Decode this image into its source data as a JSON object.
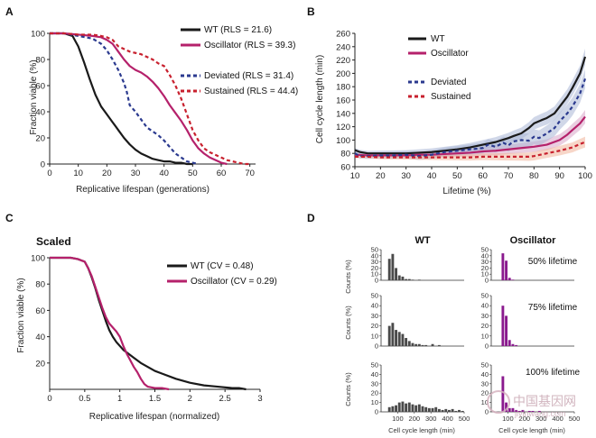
{
  "colors": {
    "wt": "#1a1a1a",
    "osc": "#b5216b",
    "dev": "#2b3a8f",
    "sus": "#c8202e",
    "wt_bar": "#4a4a4a",
    "osc_bar": "#8a1a8e",
    "shade_wt": "#a9b6d6",
    "shade_osc": "#d9a6c9",
    "shade_sus": "#f0b49a"
  },
  "panels": {
    "a": "A",
    "b": "B",
    "c": "C",
    "d": "D"
  },
  "chart_data": [
    {
      "id": "A",
      "type": "line",
      "xlabel": "Replicative lifespan (generations)",
      "ylabel": "Fraction viable (%)",
      "xlim": [
        0,
        72
      ],
      "ylim": [
        0,
        100
      ],
      "xticks": [
        "0",
        "10",
        "20",
        "30",
        "40",
        "50",
        "60",
        "70"
      ],
      "yticks": [
        "0",
        "20",
        "40",
        "60",
        "80",
        "100"
      ],
      "series": [
        {
          "name": "WT (RLS = 21.6)",
          "style": "solid",
          "x": [
            0,
            5,
            8,
            10,
            12,
            14,
            16,
            18,
            20,
            22,
            24,
            26,
            28,
            30,
            32,
            34,
            36,
            38,
            40,
            42,
            44,
            46,
            48,
            50
          ],
          "y": [
            100,
            100,
            98,
            90,
            78,
            65,
            53,
            44,
            38,
            32,
            26,
            20,
            15,
            11,
            8,
            6,
            4,
            3,
            2,
            2,
            1,
            1,
            0,
            0
          ]
        },
        {
          "name": "Oscillator (RLS = 39.3)",
          "style": "solid",
          "x": [
            0,
            5,
            10,
            15,
            18,
            20,
            22,
            24,
            26,
            28,
            30,
            32,
            34,
            36,
            38,
            40,
            42,
            44,
            46,
            48,
            50,
            52,
            54,
            56,
            58,
            60,
            62
          ],
          "y": [
            100,
            100,
            99,
            98,
            97,
            95,
            92,
            86,
            80,
            75,
            72,
            70,
            67,
            63,
            58,
            52,
            45,
            39,
            33,
            26,
            18,
            12,
            8,
            5,
            3,
            1,
            0
          ]
        },
        {
          "name": "Deviated (RLS = 31.4)",
          "style": "dashed",
          "x": [
            0,
            5,
            10,
            15,
            18,
            20,
            22,
            24,
            26,
            27,
            28,
            30,
            32,
            34,
            36,
            38,
            40,
            42,
            44,
            46,
            48,
            50,
            52
          ],
          "y": [
            100,
            100,
            98,
            96,
            92,
            87,
            80,
            72,
            62,
            55,
            45,
            40,
            34,
            28,
            25,
            22,
            18,
            13,
            8,
            5,
            2,
            1,
            0
          ]
        },
        {
          "name": "Sustained (RLS = 44.4)",
          "style": "dashed",
          "x": [
            0,
            5,
            10,
            15,
            18,
            20,
            22,
            24,
            26,
            28,
            30,
            32,
            34,
            36,
            38,
            40,
            42,
            44,
            46,
            48,
            50,
            52,
            54,
            56,
            58,
            60,
            62,
            64,
            66,
            68,
            70
          ],
          "y": [
            100,
            100,
            99,
            99,
            98,
            97,
            95,
            90,
            88,
            86,
            85,
            84,
            82,
            80,
            77,
            75,
            68,
            60,
            50,
            38,
            26,
            18,
            12,
            9,
            7,
            5,
            3,
            2,
            1,
            0,
            0
          ]
        }
      ]
    },
    {
      "id": "B",
      "type": "line",
      "xlabel": "Lifetime (%)",
      "ylabel": "Cell cycle length (min)",
      "xlim": [
        10,
        100
      ],
      "ylim": [
        60,
        260
      ],
      "xticks": [
        "10",
        "20",
        "30",
        "40",
        "50",
        "60",
        "70",
        "80",
        "90",
        "100"
      ],
      "yticks": [
        "60",
        "80",
        "100",
        "120",
        "140",
        "160",
        "180",
        "200",
        "220",
        "240",
        "260"
      ],
      "series": [
        {
          "name": "WT",
          "style": "solid",
          "shade": 6,
          "x": [
            10,
            12,
            15,
            20,
            25,
            30,
            35,
            40,
            45,
            50,
            55,
            60,
            65,
            70,
            72,
            75,
            78,
            80,
            83,
            85,
            88,
            90,
            93,
            95,
            98,
            100
          ],
          "y": [
            85,
            82,
            80,
            80,
            80,
            80,
            81,
            82,
            84,
            86,
            89,
            93,
            97,
            103,
            106,
            110,
            118,
            125,
            130,
            133,
            140,
            150,
            165,
            178,
            200,
            225
          ]
        },
        {
          "name": "Oscillator",
          "style": "solid",
          "shade": 5,
          "x": [
            10,
            15,
            20,
            25,
            30,
            35,
            40,
            45,
            50,
            55,
            60,
            65,
            70,
            75,
            80,
            85,
            90,
            93,
            95,
            98,
            100
          ],
          "y": [
            78,
            77,
            77,
            77,
            77,
            78,
            78,
            79,
            80,
            81,
            83,
            84,
            86,
            88,
            90,
            93,
            100,
            108,
            115,
            125,
            135
          ]
        },
        {
          "name": "Deviated",
          "style": "dashed",
          "shade": 7,
          "x": [
            10,
            12,
            15,
            20,
            25,
            30,
            35,
            40,
            45,
            50,
            55,
            60,
            62,
            65,
            68,
            70,
            72,
            75,
            78,
            80,
            82,
            85,
            88,
            90,
            93,
            95,
            98,
            100
          ],
          "y": [
            80,
            76,
            76,
            77,
            77,
            78,
            76,
            78,
            82,
            84,
            86,
            88,
            93,
            90,
            96,
            92,
            98,
            100,
            99,
            105,
            103,
            110,
            118,
            128,
            140,
            150,
            170,
            192
          ]
        },
        {
          "name": "Sustained",
          "style": "dashed",
          "shade": 4,
          "x": [
            10,
            15,
            20,
            25,
            30,
            35,
            40,
            45,
            50,
            55,
            60,
            65,
            70,
            75,
            78,
            80,
            85,
            90,
            95,
            98,
            100
          ],
          "y": [
            75,
            75,
            74,
            74,
            74,
            74,
            74,
            74,
            74,
            74,
            75,
            75,
            75,
            75,
            75,
            76,
            80,
            84,
            89,
            94,
            97
          ]
        }
      ]
    },
    {
      "id": "C",
      "type": "line",
      "title": "Scaled",
      "xlabel": "Replicative lifespan (normalized)",
      "ylabel": "Fraction viable (%)",
      "xlim": [
        0,
        3
      ],
      "ylim": [
        0,
        100
      ],
      "xticks": [
        "0",
        "0.5",
        "1",
        "1.5",
        "2",
        "2.5",
        "3"
      ],
      "yticks": [
        "20",
        "40",
        "60",
        "80",
        "100"
      ],
      "series": [
        {
          "name": "WT (CV = 0.48)",
          "style": "solid",
          "x": [
            0,
            0.3,
            0.4,
            0.5,
            0.55,
            0.6,
            0.65,
            0.7,
            0.75,
            0.8,
            0.85,
            0.9,
            0.95,
            1.0,
            1.05,
            1.1,
            1.2,
            1.3,
            1.4,
            1.5,
            1.6,
            1.8,
            2.0,
            2.2,
            2.4,
            2.6,
            2.7,
            2.8
          ],
          "y": [
            100,
            100,
            99,
            97,
            92,
            85,
            77,
            68,
            60,
            52,
            45,
            40,
            36,
            33,
            30,
            28,
            24,
            20,
            17,
            14,
            12,
            8,
            5,
            3,
            2,
            1,
            1,
            0
          ]
        },
        {
          "name": "Oscillator (CV = 0.29)",
          "style": "solid",
          "x": [
            0,
            0.3,
            0.4,
            0.5,
            0.55,
            0.6,
            0.65,
            0.7,
            0.75,
            0.8,
            0.85,
            0.9,
            0.95,
            1.0,
            1.05,
            1.1,
            1.15,
            1.2,
            1.25,
            1.3,
            1.35,
            1.4,
            1.5,
            1.6,
            1.7
          ],
          "y": [
            100,
            100,
            99,
            97,
            92,
            86,
            78,
            70,
            62,
            55,
            50,
            47,
            44,
            40,
            33,
            27,
            22,
            17,
            13,
            8,
            4,
            2,
            1,
            1,
            0
          ]
        }
      ]
    },
    {
      "id": "D",
      "type": "bar",
      "xlabel": "Cell cycle length (min)",
      "ylabel": "Counts (%)",
      "xlim": [
        0,
        500
      ],
      "ylim": [
        0,
        50
      ],
      "xticks": [
        "100",
        "200",
        "300",
        "400",
        "500"
      ],
      "yticks": [
        "0",
        "10",
        "20",
        "30",
        "40",
        "50"
      ],
      "columns": [
        "WT",
        "Oscillator"
      ],
      "rows": [
        "50% lifetime",
        "75% lifetime",
        "100% lifetime"
      ],
      "bin_edges_start": [
        40,
        60,
        80,
        100,
        120,
        140,
        160,
        180,
        200,
        220,
        240,
        260,
        280,
        300,
        320,
        340,
        360,
        380,
        400,
        420,
        440,
        460,
        480
      ],
      "bin_width": 20,
      "panels": [
        {
          "column": "WT",
          "row": "50% lifetime",
          "values": [
            35,
            43,
            20,
            8,
            6,
            2,
            2,
            1,
            0,
            1,
            0,
            0,
            0,
            0,
            0,
            0,
            0,
            0,
            0,
            0,
            0,
            0,
            0
          ]
        },
        {
          "column": "Oscillator",
          "row": "50% lifetime",
          "values": [
            0,
            44,
            32,
            4,
            1,
            0,
            0,
            0,
            0,
            0,
            0,
            0,
            0,
            0,
            0,
            0,
            0,
            0,
            0,
            0,
            0,
            0,
            0
          ]
        },
        {
          "column": "WT",
          "row": "75% lifetime",
          "values": [
            20,
            23,
            16,
            14,
            12,
            8,
            5,
            3,
            2,
            2,
            1,
            1,
            0,
            2,
            0,
            1,
            0,
            0,
            0,
            0,
            0,
            0,
            0
          ]
        },
        {
          "column": "Oscillator",
          "row": "75% lifetime",
          "values": [
            0,
            40,
            30,
            6,
            2,
            1,
            0,
            0,
            0,
            0,
            0,
            0,
            0,
            0,
            0,
            0,
            0,
            0,
            0,
            0,
            0,
            0,
            0
          ]
        },
        {
          "column": "WT",
          "row": "100% lifetime",
          "values": [
            5,
            6,
            7,
            10,
            11,
            9,
            10,
            8,
            7,
            8,
            6,
            5,
            4,
            4,
            5,
            3,
            2,
            3,
            2,
            3,
            1,
            2,
            1
          ]
        },
        {
          "column": "Oscillator",
          "row": "100% lifetime",
          "values": [
            0,
            38,
            10,
            4,
            4,
            2,
            1,
            2,
            0,
            1,
            1,
            0,
            1,
            0,
            0,
            0,
            0,
            0,
            0,
            0,
            0,
            0,
            0
          ]
        }
      ]
    }
  ],
  "watermark": {
    "text": "中国基因网",
    "sub": "jiyinwang.com"
  }
}
